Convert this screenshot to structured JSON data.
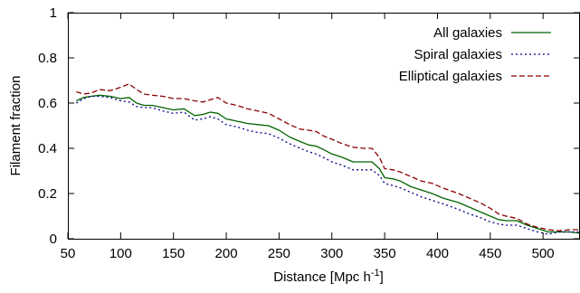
{
  "chart_data": {
    "type": "line",
    "xlabel": "Distance  [Mpc h",
    "xlabel_sup": "-1",
    "xlabel_end": "]",
    "ylabel": "Filament fraction",
    "xlim": [
      50,
      535
    ],
    "ylim": [
      0,
      1
    ],
    "xticks": [
      50,
      100,
      150,
      200,
      250,
      300,
      350,
      400,
      450,
      500
    ],
    "yticks": [
      0,
      0.2,
      0.4,
      0.6,
      0.8,
      1
    ],
    "ytick_labels": [
      "0",
      "0.2",
      "0.4",
      "0.6",
      "0.8",
      "1"
    ],
    "grid": false,
    "legend_position": "top-right",
    "series": [
      {
        "name": "All galaxies",
        "color": "#006400",
        "style": "solid",
        "x": [
          58,
          65,
          72,
          80,
          90,
          100,
          108,
          115,
          122,
          130,
          140,
          150,
          160,
          170,
          178,
          185,
          192,
          200,
          210,
          220,
          230,
          240,
          250,
          260,
          270,
          278,
          285,
          292,
          300,
          310,
          320,
          330,
          338,
          345,
          350,
          358,
          365,
          375,
          385,
          395,
          405,
          420,
          430,
          440,
          450,
          458,
          465,
          475,
          485,
          495,
          505,
          515,
          525,
          535
        ],
        "y": [
          0.61,
          0.625,
          0.63,
          0.635,
          0.63,
          0.62,
          0.625,
          0.6,
          0.59,
          0.59,
          0.58,
          0.57,
          0.575,
          0.545,
          0.55,
          0.56,
          0.555,
          0.53,
          0.52,
          0.51,
          0.505,
          0.5,
          0.48,
          0.45,
          0.43,
          0.415,
          0.41,
          0.395,
          0.375,
          0.36,
          0.34,
          0.34,
          0.34,
          0.31,
          0.27,
          0.265,
          0.255,
          0.23,
          0.215,
          0.2,
          0.18,
          0.16,
          0.14,
          0.12,
          0.1,
          0.085,
          0.08,
          0.08,
          0.06,
          0.045,
          0.03,
          0.03,
          0.03,
          0.025
        ]
      },
      {
        "name": "Spiral galaxies",
        "color": "#00008b",
        "style": "dotted",
        "x": [
          58,
          65,
          72,
          80,
          90,
          100,
          108,
          115,
          122,
          130,
          140,
          150,
          160,
          170,
          178,
          185,
          192,
          200,
          210,
          220,
          230,
          240,
          250,
          260,
          270,
          278,
          285,
          292,
          300,
          310,
          320,
          330,
          338,
          345,
          350,
          358,
          365,
          375,
          385,
          395,
          405,
          420,
          430,
          440,
          450,
          458,
          465,
          475,
          485,
          495,
          505,
          515,
          525,
          535
        ],
        "y": [
          0.6,
          0.62,
          0.63,
          0.63,
          0.625,
          0.61,
          0.605,
          0.585,
          0.58,
          0.58,
          0.565,
          0.555,
          0.56,
          0.525,
          0.53,
          0.54,
          0.53,
          0.505,
          0.495,
          0.48,
          0.47,
          0.465,
          0.445,
          0.42,
          0.4,
          0.385,
          0.375,
          0.36,
          0.34,
          0.325,
          0.305,
          0.305,
          0.305,
          0.28,
          0.245,
          0.235,
          0.225,
          0.205,
          0.185,
          0.17,
          0.155,
          0.13,
          0.11,
          0.095,
          0.075,
          0.065,
          0.06,
          0.06,
          0.045,
          0.03,
          0.02,
          0.03,
          0.03,
          0.03
        ]
      },
      {
        "name": "Elliptical galaxies",
        "color": "#8b0000",
        "style": "dashed",
        "x": [
          58,
          65,
          72,
          80,
          90,
          100,
          108,
          115,
          122,
          130,
          140,
          150,
          160,
          170,
          178,
          185,
          192,
          200,
          210,
          220,
          230,
          240,
          250,
          260,
          270,
          278,
          285,
          292,
          300,
          310,
          320,
          330,
          338,
          345,
          350,
          358,
          365,
          375,
          385,
          395,
          405,
          420,
          430,
          440,
          450,
          458,
          465,
          475,
          485,
          495,
          505,
          515,
          525,
          535
        ],
        "y": [
          0.65,
          0.64,
          0.645,
          0.66,
          0.655,
          0.67,
          0.685,
          0.66,
          0.64,
          0.635,
          0.63,
          0.62,
          0.62,
          0.61,
          0.605,
          0.615,
          0.625,
          0.6,
          0.59,
          0.575,
          0.565,
          0.555,
          0.53,
          0.505,
          0.485,
          0.48,
          0.475,
          0.455,
          0.44,
          0.42,
          0.405,
          0.4,
          0.4,
          0.36,
          0.31,
          0.305,
          0.295,
          0.275,
          0.255,
          0.245,
          0.225,
          0.2,
          0.18,
          0.16,
          0.135,
          0.11,
          0.1,
          0.09,
          0.065,
          0.05,
          0.04,
          0.035,
          0.04,
          0.04
        ]
      }
    ]
  }
}
